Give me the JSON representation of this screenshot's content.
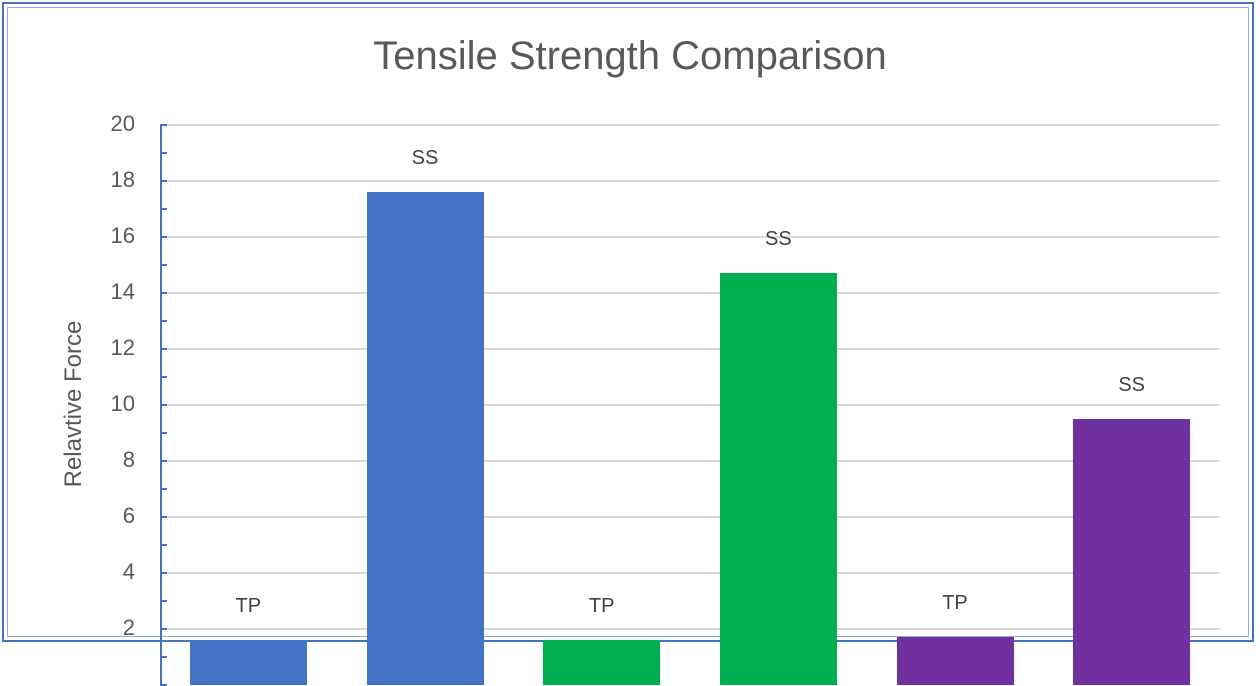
{
  "chart_data": {
    "type": "bar",
    "title": "Tensile Strength Comparison",
    "xlabel": "",
    "ylabel": "Relavtive Force",
    "ylim": [
      0,
      20
    ],
    "yticks": [
      2,
      4,
      6,
      8,
      10,
      12,
      14,
      16,
      18,
      20
    ],
    "grid": true,
    "legend": null,
    "categories": [
      "TP",
      "SS",
      "TP",
      "SS",
      "TP",
      "SS"
    ],
    "values": [
      1.6,
      17.6,
      1.6,
      14.7,
      1.7,
      9.5
    ],
    "colors": [
      "#4472C4",
      "#4472C4",
      "#00B050",
      "#00B050",
      "#7030A0",
      "#7030A0"
    ],
    "data_labels": [
      "TP",
      "SS",
      "TP",
      "SS",
      "TP",
      "SS"
    ]
  },
  "chart": {
    "title": "Tensile Strength Comparison",
    "ylabel": "Relavtive Force",
    "yticks": [
      "20",
      "18",
      "16",
      "14",
      "12",
      "10",
      "8",
      "6",
      "4",
      "2"
    ],
    "bars": [
      {
        "label": "TP",
        "value": 1.6,
        "color": "#4472C4"
      },
      {
        "label": "SS",
        "value": 17.6,
        "color": "#4472C4"
      },
      {
        "label": "TP",
        "value": 1.6,
        "color": "#00B050"
      },
      {
        "label": "SS",
        "value": 14.7,
        "color": "#00B050"
      },
      {
        "label": "TP",
        "value": 1.7,
        "color": "#7030A0"
      },
      {
        "label": "SS",
        "value": 9.5,
        "color": "#7030A0"
      }
    ]
  }
}
